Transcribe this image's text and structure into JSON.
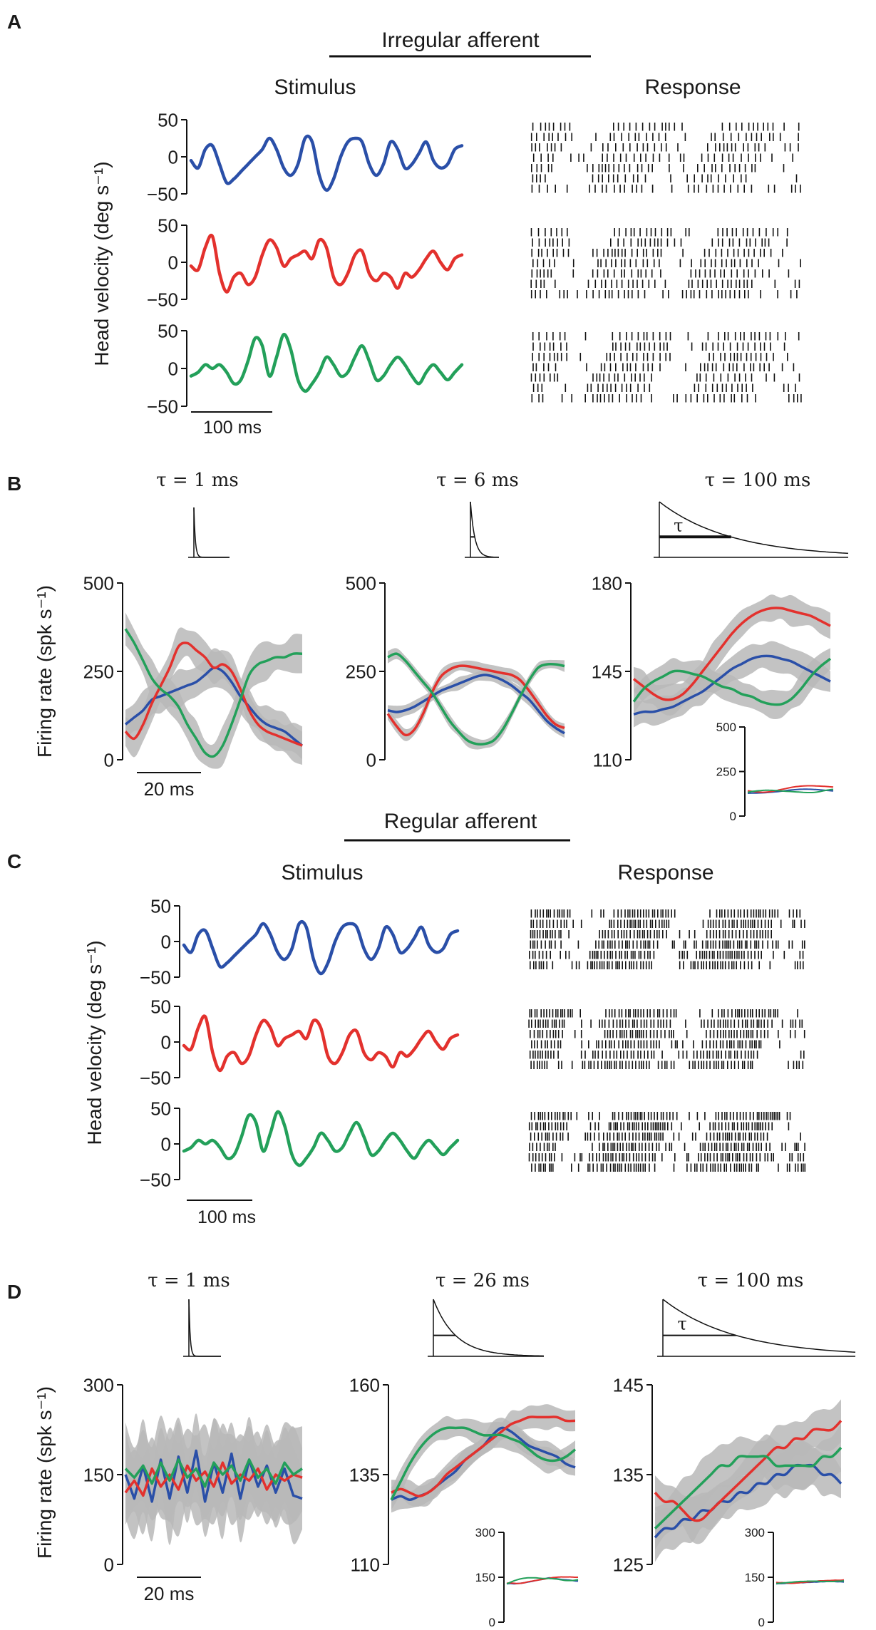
{
  "colors": {
    "blue": "#2a4fa8",
    "red": "#e3312d",
    "green": "#23a05a",
    "band": "#b9b9b9",
    "axis": "#111111"
  },
  "panels": {
    "A": {
      "label": "A",
      "title": "Irregular afferent",
      "stimulus_title": "Stimulus",
      "response_title": "Response"
    },
    "B": {
      "label": "B"
    },
    "C": {
      "label": "C",
      "title": "Regular afferent",
      "stimulus_title": "Stimulus",
      "response_title": "Response"
    },
    "D": {
      "label": "D"
    }
  },
  "chart_data": [
    {
      "id": "A-stimulus",
      "type": "line",
      "title": "Stimulus",
      "ylabel": "Head velocity (deg s⁻¹)",
      "ylim": [
        -50,
        50
      ],
      "yticks": [
        "50",
        "0",
        "−50"
      ],
      "scalebar": "100 ms",
      "series": [
        {
          "name": "blue",
          "color": "#2a4fa8",
          "y": [
            -5,
            -15,
            10,
            15,
            -10,
            -35,
            -30,
            -20,
            -10,
            0,
            10,
            25,
            10,
            -15,
            -25,
            -10,
            25,
            20,
            -25,
            -45,
            -30,
            0,
            20,
            25,
            20,
            -10,
            -25,
            -10,
            20,
            10,
            -15,
            -10,
            5,
            20,
            -5,
            -15,
            -10,
            10,
            15
          ]
        },
        {
          "name": "red",
          "color": "#e3312d",
          "y": [
            -5,
            -10,
            20,
            35,
            -15,
            -40,
            -20,
            -15,
            -30,
            -20,
            10,
            30,
            20,
            -5,
            5,
            10,
            15,
            5,
            30,
            20,
            -20,
            -30,
            -15,
            10,
            15,
            -15,
            -25,
            -15,
            -20,
            -35,
            -15,
            -20,
            -10,
            5,
            15,
            0,
            -10,
            5,
            10
          ]
        },
        {
          "name": "green",
          "color": "#23a05a",
          "y": [
            -10,
            -5,
            5,
            0,
            5,
            -5,
            -20,
            -15,
            10,
            40,
            30,
            -10,
            15,
            45,
            25,
            -15,
            -30,
            -20,
            -5,
            15,
            5,
            -10,
            -5,
            15,
            30,
            10,
            -15,
            -10,
            5,
            15,
            5,
            -10,
            -20,
            -5,
            5,
            -5,
            -15,
            -5,
            5
          ]
        }
      ]
    },
    {
      "id": "A-response",
      "type": "raster",
      "title": "Response"
    },
    {
      "id": "B-tau1",
      "type": "line",
      "kernel_title": "τ = 1 ms",
      "ylabel": "Firing rate (spk s⁻¹)",
      "ylim": [
        0,
        500
      ],
      "yticks": [
        "500",
        "250",
        "0"
      ],
      "scalebar": "20 ms",
      "series": [
        {
          "name": "blue",
          "color": "#2a4fa8",
          "y": [
            100,
            120,
            140,
            170,
            180,
            190,
            200,
            210,
            220,
            240,
            260,
            250,
            220,
            180,
            150,
            120,
            100,
            90,
            80,
            60,
            40
          ]
        },
        {
          "name": "red",
          "color": "#e3312d",
          "y": [
            80,
            60,
            100,
            160,
            210,
            260,
            320,
            330,
            310,
            290,
            260,
            270,
            250,
            200,
            140,
            100,
            80,
            70,
            60,
            50,
            40
          ]
        },
        {
          "name": "green",
          "color": "#23a05a",
          "y": [
            370,
            330,
            280,
            230,
            200,
            180,
            150,
            100,
            60,
            20,
            10,
            40,
            100,
            170,
            240,
            270,
            280,
            290,
            290,
            300,
            300
          ]
        }
      ]
    },
    {
      "id": "B-tau6",
      "type": "line",
      "kernel_title": "τ = 6 ms",
      "ylim": [
        0,
        500
      ],
      "yticks": [
        "500",
        "250",
        "0"
      ],
      "series": [
        {
          "name": "blue",
          "color": "#2a4fa8",
          "y": [
            140,
            135,
            140,
            150,
            165,
            180,
            195,
            205,
            215,
            225,
            235,
            240,
            235,
            225,
            210,
            190,
            170,
            140,
            110,
            90,
            75
          ]
        },
        {
          "name": "red",
          "color": "#e3312d",
          "y": [
            130,
            95,
            70,
            85,
            130,
            190,
            235,
            255,
            265,
            265,
            260,
            255,
            250,
            245,
            240,
            225,
            195,
            160,
            125,
            100,
            90
          ]
        },
        {
          "name": "green",
          "color": "#23a05a",
          "y": [
            290,
            300,
            280,
            250,
            220,
            190,
            150,
            110,
            80,
            55,
            45,
            45,
            55,
            85,
            130,
            180,
            225,
            260,
            270,
            270,
            265
          ]
        }
      ]
    },
    {
      "id": "B-tau100",
      "type": "line",
      "kernel_title": "τ = 100 ms",
      "kernel_symbol": "τ",
      "ylim": [
        110,
        180
      ],
      "yticks": [
        "180",
        "145",
        "110"
      ],
      "series": [
        {
          "name": "blue",
          "color": "#2a4fa8",
          "y": [
            128,
            129,
            129,
            130,
            131,
            133,
            135,
            137,
            140,
            143,
            146,
            148,
            150,
            151,
            151,
            150,
            149,
            147,
            145,
            143,
            141
          ]
        },
        {
          "name": "red",
          "color": "#e3312d",
          "y": [
            142,
            139,
            136,
            134,
            134,
            136,
            140,
            145,
            150,
            155,
            160,
            164,
            167,
            169,
            170,
            170,
            169,
            168,
            167,
            165,
            163
          ]
        },
        {
          "name": "green",
          "color": "#23a05a",
          "y": [
            133,
            138,
            141,
            143,
            145,
            145,
            144,
            143,
            141,
            139,
            138,
            136,
            135,
            133,
            132,
            132,
            134,
            138,
            143,
            147,
            150
          ]
        }
      ],
      "inset": {
        "ylim": [
          0,
          500
        ],
        "yticks": [
          "500",
          "250",
          "0"
        ]
      }
    },
    {
      "id": "C-stimulus",
      "type": "line",
      "title": "Stimulus",
      "ylabel": "Head velocity (deg s⁻¹)",
      "ylim": [
        -50,
        50
      ],
      "yticks": [
        "50",
        "0",
        "−50"
      ],
      "scalebar": "100 ms"
    },
    {
      "id": "C-response",
      "type": "raster",
      "title": "Response"
    },
    {
      "id": "D-tau1",
      "type": "line",
      "kernel_title": "τ = 1 ms",
      "ylabel": "Firing rate (spk s⁻¹)",
      "ylim": [
        0,
        300
      ],
      "yticks": [
        "300",
        "150",
        "0"
      ],
      "scalebar": "20 ms",
      "series": [
        {
          "name": "blue",
          "color": "#2a4fa8",
          "y": [
            150,
            110,
            165,
            105,
            175,
            110,
            180,
            120,
            190,
            105,
            170,
            120,
            185,
            110,
            175,
            130,
            165,
            120,
            160,
            115,
            110
          ]
        },
        {
          "name": "red",
          "color": "#e3312d",
          "y": [
            120,
            140,
            115,
            160,
            130,
            150,
            125,
            165,
            140,
            155,
            130,
            170,
            135,
            150,
            140,
            160,
            125,
            150,
            140,
            150,
            145
          ]
        },
        {
          "name": "green",
          "color": "#23a05a",
          "y": [
            160,
            145,
            165,
            135,
            170,
            140,
            175,
            145,
            160,
            130,
            170,
            150,
            165,
            140,
            175,
            145,
            160,
            135,
            170,
            150,
            160
          ]
        }
      ]
    },
    {
      "id": "D-tau26",
      "type": "line",
      "kernel_title": "τ = 26 ms",
      "ylim": [
        110,
        160
      ],
      "yticks": [
        "160",
        "135",
        "110"
      ],
      "series": [
        {
          "name": "blue",
          "color": "#2a4fa8",
          "y": [
            128,
            129,
            128,
            129,
            130,
            132,
            134,
            136,
            139,
            141,
            143,
            146,
            148,
            147,
            145,
            143,
            142,
            141,
            140,
            138,
            137
          ]
        },
        {
          "name": "red",
          "color": "#e3312d",
          "y": [
            130,
            131,
            130,
            129,
            130,
            132,
            135,
            137,
            139,
            141,
            143,
            145,
            147,
            149,
            150,
            151,
            151,
            151,
            151,
            150,
            150
          ]
        },
        {
          "name": "green",
          "color": "#23a05a",
          "y": [
            128,
            133,
            138,
            142,
            145,
            147,
            148,
            148,
            148,
            147,
            146,
            146,
            146,
            145,
            144,
            142,
            140,
            139,
            139,
            140,
            142
          ]
        }
      ],
      "inset": {
        "ylim": [
          0,
          300
        ],
        "yticks": [
          "300",
          "150",
          "0"
        ]
      }
    },
    {
      "id": "D-tau100",
      "type": "line",
      "kernel_title": "τ = 100 ms",
      "kernel_symbol": "τ",
      "ylim": [
        125,
        145
      ],
      "yticks": [
        "145",
        "135",
        "125"
      ],
      "series": [
        {
          "name": "blue",
          "color": "#2a4fa8",
          "y": [
            128,
            129,
            129,
            130,
            130,
            131,
            131,
            132,
            132,
            133,
            133,
            134,
            134,
            135,
            135,
            136,
            136,
            136,
            135,
            135,
            134
          ]
        },
        {
          "name": "red",
          "color": "#e3312d",
          "y": [
            133,
            132,
            132,
            131,
            130,
            130,
            131,
            132,
            133,
            134,
            135,
            136,
            137,
            138,
            138,
            139,
            139,
            140,
            140,
            140,
            141
          ]
        },
        {
          "name": "green",
          "color": "#23a05a",
          "y": [
            129,
            130,
            131,
            132,
            133,
            134,
            135,
            136,
            136,
            137,
            137,
            137,
            137,
            136,
            136,
            136,
            136,
            136,
            137,
            137,
            138
          ]
        }
      ],
      "inset": {
        "ylim": [
          0,
          300
        ],
        "yticks": [
          "300",
          "150",
          "0"
        ]
      }
    }
  ]
}
